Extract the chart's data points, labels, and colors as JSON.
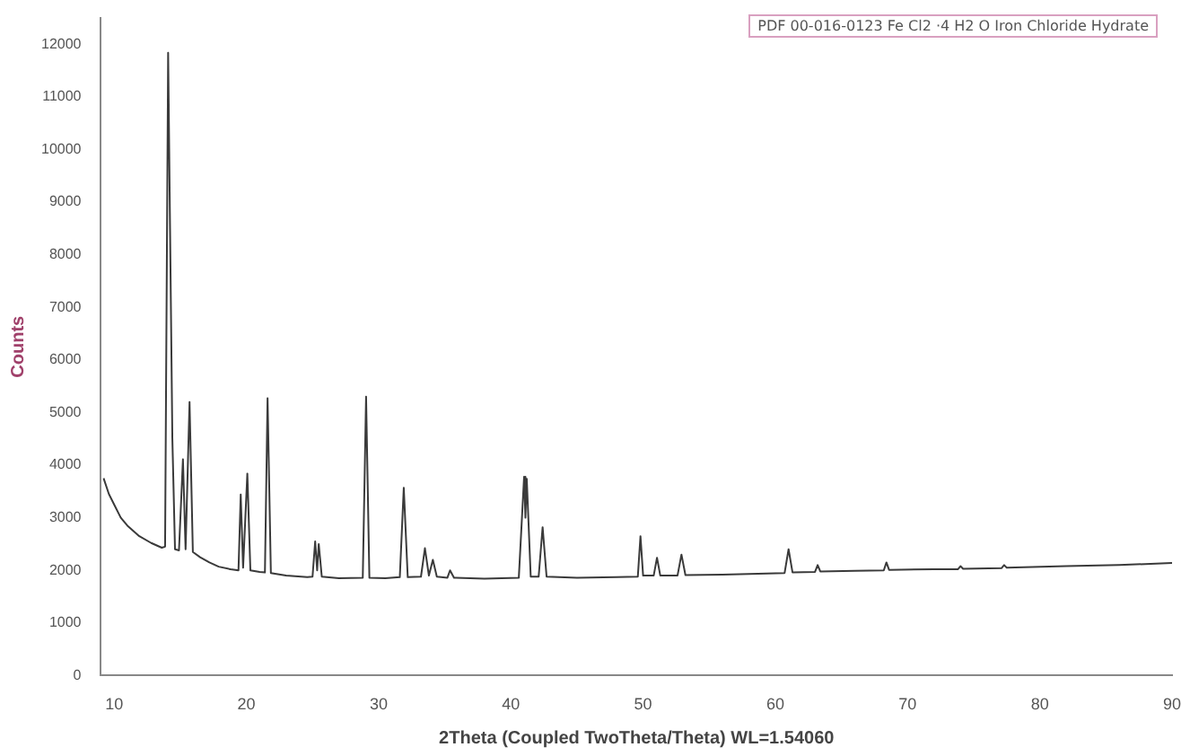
{
  "chart_data": {
    "type": "line",
    "xlabel": "2Theta (Coupled TwoTheta/Theta) WL=1.54060",
    "ylabel": "Counts",
    "annotations": [
      "PDF 00-016-0123 Fe Cl2 ·4 H2 O Iron Chloride Hydrate"
    ],
    "xlim": [
      9,
      90
    ],
    "xticks": [
      10,
      20,
      30,
      40,
      50,
      60,
      70,
      80,
      90
    ],
    "ylim": [
      0,
      12500
    ],
    "yticks": [
      0,
      1000,
      2000,
      3000,
      4000,
      5000,
      6000,
      7000,
      8000,
      9000,
      10000,
      11000,
      12000
    ],
    "grid": false,
    "legend": false,
    "marker": "none",
    "line_style": "solid",
    "series": [
      {
        "color": "#3a3a3a",
        "x": [
          9.2,
          9.6,
          10,
          10.5,
          11,
          11.9,
          12.8,
          13.6,
          13.85,
          14.08,
          14.4,
          14.6,
          14.9,
          15.2,
          15.4,
          15.7,
          15.95,
          16.5,
          17.2,
          17.9,
          18.8,
          19.4,
          19.57,
          19.75,
          20.07,
          20.3,
          21,
          21.4,
          21.6,
          21.85,
          23,
          24.6,
          25.0,
          25.2,
          25.35,
          25.47,
          25.7,
          27,
          28.8,
          29.05,
          29.3,
          30.5,
          31.6,
          31.9,
          32.2,
          33.2,
          33.5,
          33.8,
          34.1,
          34.4,
          35.2,
          35.4,
          35.7,
          38,
          40.6,
          41.0,
          41.1,
          41.2,
          41.5,
          42.1,
          42.4,
          42.7,
          45,
          48,
          49.6,
          49.8,
          50.0,
          50.8,
          51.05,
          51.3,
          52.6,
          52.9,
          53.2,
          56,
          60.7,
          61,
          61.3,
          63.0,
          63.2,
          63.4,
          66,
          68.2,
          68.4,
          68.6,
          72,
          73.8,
          74,
          74.2,
          77.1,
          77.3,
          77.5,
          82,
          86,
          90
        ],
        "values": [
          3750,
          3450,
          3250,
          3000,
          2850,
          2650,
          2520,
          2430,
          2450,
          11840,
          4500,
          2400,
          2380,
          4110,
          2400,
          5200,
          2350,
          2250,
          2150,
          2070,
          2020,
          2000,
          3440,
          2050,
          3840,
          2000,
          1970,
          1960,
          5270,
          1950,
          1900,
          1870,
          1880,
          2550,
          2000,
          2500,
          1880,
          1850,
          1860,
          5300,
          1860,
          1850,
          1870,
          3570,
          1870,
          1880,
          2420,
          1900,
          2200,
          1880,
          1860,
          2000,
          1860,
          1840,
          1860,
          3780,
          3000,
          3740,
          1880,
          1880,
          2820,
          1880,
          1860,
          1870,
          1880,
          2650,
          1900,
          1900,
          2240,
          1900,
          1900,
          2300,
          1910,
          1920,
          1950,
          2400,
          1960,
          1970,
          2100,
          1980,
          1990,
          2000,
          2150,
          2010,
          2020,
          2020,
          2080,
          2030,
          2040,
          2100,
          2050,
          2080,
          2100,
          2140
        ]
      }
    ]
  }
}
